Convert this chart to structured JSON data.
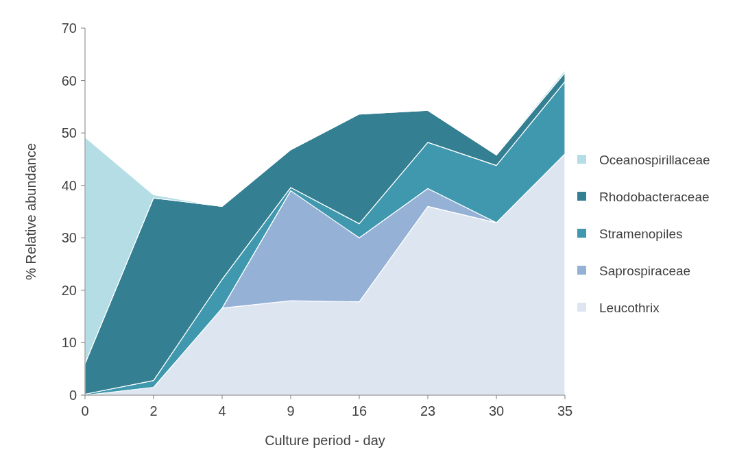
{
  "chart_data": {
    "type": "area",
    "stacked": true,
    "xlabel": "Culture period - day",
    "ylabel": "% Relative abundance",
    "categories": [
      "0",
      "2",
      "4",
      "9",
      "16",
      "23",
      "30",
      "35"
    ],
    "ylim": [
      0,
      70
    ],
    "yticks": [
      0,
      10,
      20,
      30,
      40,
      50,
      60,
      70
    ],
    "grid": false,
    "legend": "right",
    "series": [
      {
        "name": "Leucothrix",
        "color": "#dde5f1",
        "values": [
          0,
          1.5,
          16.6,
          18,
          17.8,
          36,
          32.9,
          46
        ]
      },
      {
        "name": "Saprospiraceae",
        "color": "#95b1d6",
        "values": [
          null,
          null,
          0,
          21,
          12.2,
          3.4,
          0,
          null
        ]
      },
      {
        "name": "Stramenopiles",
        "color": "#3f98ae",
        "values": [
          0.2,
          1.3,
          5.5,
          0.6,
          2.7,
          8.8,
          10.9,
          13.8
        ]
      },
      {
        "name": "Rhodobacteraceae",
        "color": "#347f91",
        "values": [
          5.8,
          34.8,
          13.9,
          7.2,
          20.9,
          6.1,
          2,
          1.7
        ]
      },
      {
        "name": "Oceanospirillaceae",
        "color": "#b4dde6",
        "values": [
          43.2,
          0.6,
          0,
          0,
          0,
          0,
          0.2,
          0.5
        ]
      }
    ]
  }
}
